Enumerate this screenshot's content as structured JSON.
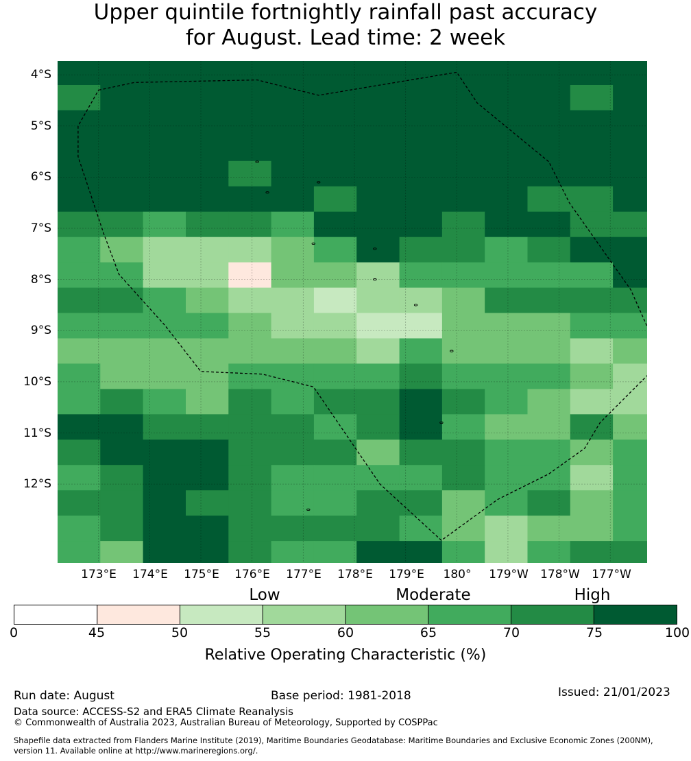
{
  "title": {
    "line1": "Upper quintile fortnightly rainfall past accuracy",
    "line2": "for August. Lead time: 2 week"
  },
  "map": {
    "lat_labels": [
      "4°S",
      "5°S",
      "6°S",
      "7°S",
      "8°S",
      "9°S",
      "10°S",
      "11°S",
      "12°S"
    ],
    "lon_labels": [
      "173°E",
      "174°E",
      "175°E",
      "176°E",
      "177°E",
      "178°E",
      "179°E",
      "180°",
      "179°W",
      "178°W",
      "177°W"
    ],
    "grid_values": [
      [
        80,
        80,
        80,
        80,
        80,
        80,
        80,
        80,
        80,
        80,
        80,
        80,
        80,
        80
      ],
      [
        72,
        80,
        80,
        80,
        80,
        80,
        80,
        80,
        80,
        80,
        80,
        80,
        72,
        80
      ],
      [
        80,
        80,
        80,
        80,
        80,
        80,
        80,
        80,
        80,
        80,
        80,
        80,
        80,
        80
      ],
      [
        80,
        80,
        80,
        80,
        80,
        80,
        80,
        80,
        80,
        80,
        80,
        80,
        80,
        80
      ],
      [
        80,
        80,
        80,
        80,
        72,
        80,
        80,
        80,
        80,
        80,
        80,
        80,
        80,
        80
      ],
      [
        80,
        80,
        80,
        80,
        80,
        80,
        72,
        80,
        80,
        80,
        80,
        72,
        72,
        80
      ],
      [
        72,
        72,
        67,
        72,
        72,
        67,
        80,
        80,
        80,
        72,
        80,
        80,
        72,
        72
      ],
      [
        67,
        62,
        57,
        57,
        57,
        62,
        67,
        80,
        72,
        72,
        67,
        72,
        80,
        80
      ],
      [
        67,
        67,
        57,
        57,
        47,
        62,
        62,
        57,
        67,
        67,
        67,
        67,
        67,
        80
      ],
      [
        72,
        72,
        67,
        62,
        57,
        57,
        52,
        57,
        57,
        62,
        72,
        72,
        72,
        72
      ],
      [
        67,
        67,
        67,
        67,
        62,
        57,
        57,
        52,
        52,
        62,
        62,
        62,
        67,
        67
      ],
      [
        62,
        62,
        62,
        62,
        62,
        62,
        62,
        57,
        67,
        62,
        62,
        62,
        57,
        62
      ],
      [
        67,
        62,
        62,
        62,
        67,
        67,
        67,
        67,
        72,
        67,
        67,
        67,
        62,
        57
      ],
      [
        67,
        72,
        67,
        62,
        72,
        67,
        72,
        72,
        80,
        72,
        67,
        62,
        57,
        57
      ],
      [
        80,
        80,
        72,
        72,
        72,
        72,
        67,
        72,
        80,
        67,
        62,
        62,
        72,
        62
      ],
      [
        72,
        80,
        80,
        80,
        72,
        72,
        72,
        62,
        72,
        72,
        67,
        67,
        62,
        67
      ],
      [
        67,
        72,
        80,
        80,
        72,
        67,
        67,
        67,
        67,
        72,
        67,
        67,
        57,
        67
      ],
      [
        72,
        72,
        80,
        72,
        72,
        67,
        67,
        72,
        72,
        62,
        67,
        72,
        62,
        67
      ],
      [
        67,
        72,
        80,
        80,
        72,
        72,
        72,
        72,
        67,
        62,
        57,
        62,
        62,
        67
      ],
      [
        67,
        62,
        80,
        80,
        72,
        67,
        67,
        80,
        80,
        67,
        57,
        67,
        72,
        72
      ]
    ],
    "islands": [
      [
        176.1,
        -5.7
      ],
      [
        176.3,
        -6.3
      ],
      [
        177.3,
        -6.1
      ],
      [
        177.2,
        -7.3
      ],
      [
        178.4,
        -7.4
      ],
      [
        178.4,
        -8.0
      ],
      [
        179.2,
        -8.5
      ],
      [
        179.9,
        -9.4
      ],
      [
        179.7,
        -10.8
      ],
      [
        177.1,
        -12.5
      ]
    ],
    "boundary": [
      [
        173.0,
        -4.3
      ],
      [
        173.7,
        -4.15
      ],
      [
        176.1,
        -4.1
      ],
      [
        177.3,
        -4.4
      ],
      [
        180.0,
        -3.95
      ],
      [
        180.4,
        -4.55
      ],
      [
        181.8,
        -5.7
      ],
      [
        182.2,
        -6.5
      ],
      [
        183.4,
        -8.2
      ],
      [
        183.8,
        -9.1
      ],
      [
        183.75,
        -9.85
      ],
      [
        182.8,
        -10.8
      ],
      [
        182.5,
        -11.3
      ],
      [
        181.8,
        -11.8
      ],
      [
        180.8,
        -12.3
      ],
      [
        179.7,
        -13.1
      ],
      [
        178.5,
        -12.0
      ],
      [
        177.2,
        -10.1
      ],
      [
        176.2,
        -9.85
      ],
      [
        175.0,
        -9.8
      ],
      [
        174.3,
        -8.9
      ],
      [
        173.4,
        -7.9
      ],
      [
        173.1,
        -7.1
      ],
      [
        172.6,
        -5.6
      ],
      [
        172.6,
        -5.0
      ],
      [
        173.0,
        -4.3
      ]
    ]
  },
  "legend": {
    "categories": [
      "Low",
      "Moderate",
      "High"
    ],
    "ticks": [
      "0",
      "45",
      "50",
      "55",
      "60",
      "65",
      "70",
      "75",
      "100"
    ],
    "colors": [
      "#ffffff",
      "#fee8de",
      "#c7e9c0",
      "#a1d99b",
      "#74c476",
      "#41ab5d",
      "#238b45",
      "#005a32"
    ],
    "title": "Relative Operating Characteristic (%)"
  },
  "footer": {
    "run_date": "Run date: August",
    "base_period": "Base period: 1981-2018",
    "issued": "Issued: 21/01/2023",
    "data_source": "Data source: ACCESS-S2 and ERA5 Climate Reanalysis",
    "copyright": "© Commonwealth of Australia 2023, Australian Bureau of Meteorology, Supported by COSPPac",
    "shapefile_line1": "Shapefile data extracted from Flanders Marine Institute (2019), Maritime Boundaries Geodatabase: Maritime Boundaries and Exclusive Economic Zones (200NM),",
    "shapefile_line2": "version 11. Available online at http://www.marineregions.org/."
  }
}
